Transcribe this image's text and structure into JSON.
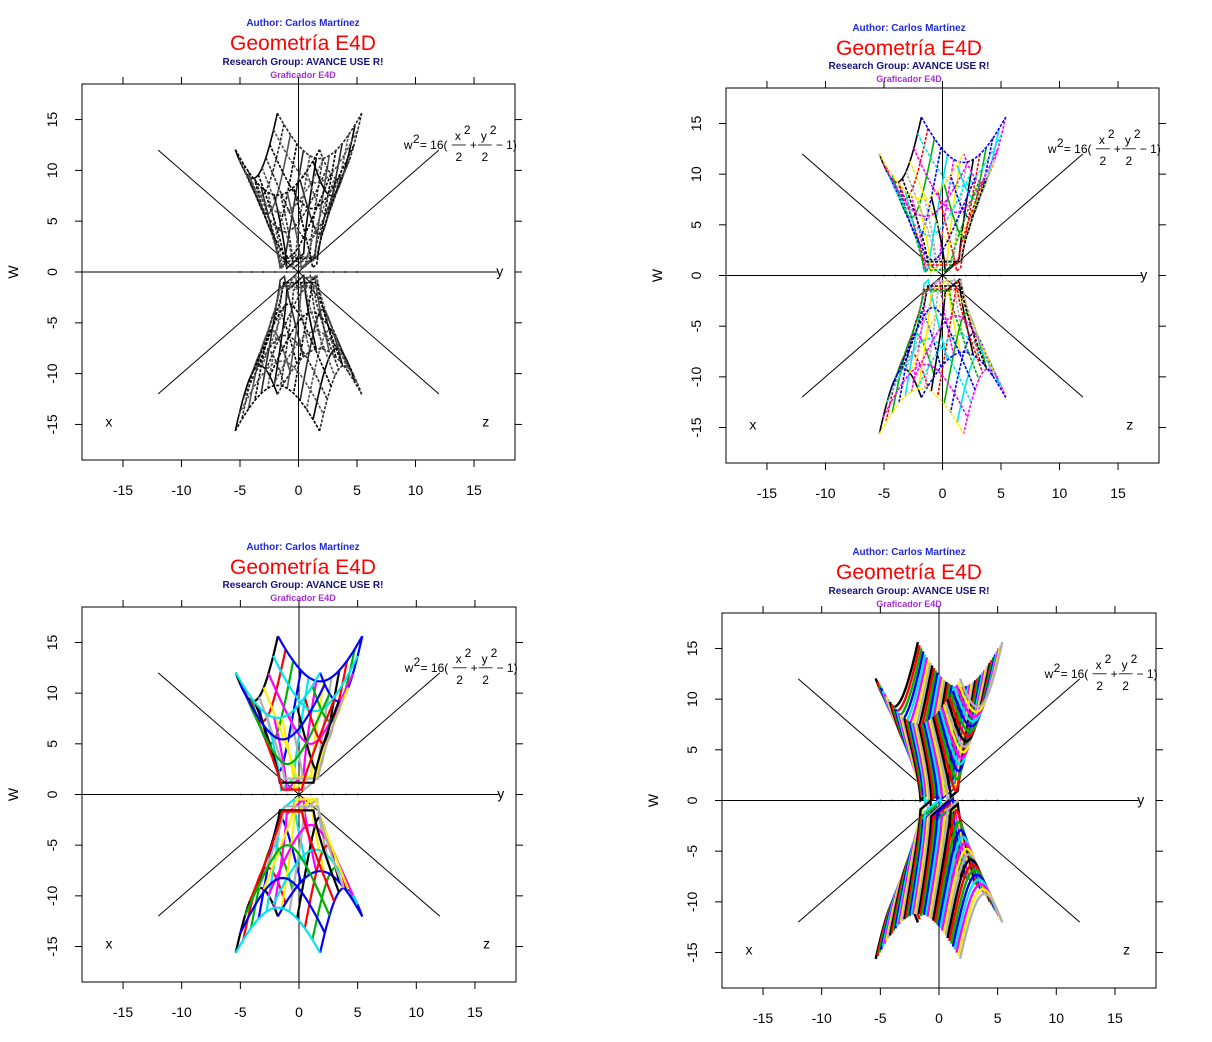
{
  "figure": {
    "author": "Author: Carlos Martínez",
    "title": "Geometría E4D",
    "research_group": "Research Group: AVANCE USE R!",
    "subtitle": "Graficador E4D",
    "ylabel": "W",
    "axis_labels": {
      "x": "x",
      "y": "y",
      "z": "z"
    },
    "formula": {
      "lhs": "w",
      "lhs_exp": "2",
      "eq": "= 16(",
      "t1_num": "x",
      "t1_exp": "2",
      "t1_den": "2",
      "plus": "+",
      "t2_num": "y",
      "t2_exp": "2",
      "t2_den": "2",
      "tail": "− 1)"
    }
  },
  "chart_data": [
    {
      "type": "line",
      "panel": "top-left",
      "coloring": "gray mesh",
      "palette": [
        "#000000",
        "#2b2b2b",
        "#555555"
      ],
      "xlim": [
        -18.5,
        18.5
      ],
      "ylim": [
        -18.5,
        18.5
      ],
      "xticks": [
        "-15",
        "-10",
        "-5",
        "0",
        "5",
        "10",
        "15"
      ],
      "yticks": [
        "15",
        "10",
        "5",
        "0",
        "-5",
        "-10",
        "-15"
      ],
      "surface": "w^2 = 16(x^2/2 + y^2/2 - 1)",
      "u_curves": 14,
      "v_curves": 12
    },
    {
      "type": "line",
      "panel": "top-right",
      "coloring": "colored mesh",
      "palette": [
        "#000000",
        "#ff0000",
        "#00b000",
        "#0000ff",
        "#00e5ee",
        "#ff00ff",
        "#ffee00",
        "#b0b0b0"
      ],
      "xlim": [
        -18.5,
        18.5
      ],
      "ylim": [
        -18.5,
        18.5
      ],
      "xticks": [
        "-15",
        "-10",
        "-5",
        "0",
        "5",
        "10",
        "15"
      ],
      "yticks": [
        "15",
        "10",
        "5",
        "0",
        "-5",
        "-10",
        "-15"
      ],
      "surface": "w^2 = 16(x^2/2 + y^2/2 - 1)",
      "u_curves": 14,
      "v_curves": 12
    },
    {
      "type": "line",
      "panel": "bottom-left",
      "coloring": "colored curves",
      "palette": [
        "#000000",
        "#ff0000",
        "#00b000",
        "#0000ff",
        "#00e5ee",
        "#ff00ff",
        "#ffee00",
        "#b0b0b0"
      ],
      "xlim": [
        -18.5,
        18.5
      ],
      "ylim": [
        -18.5,
        18.5
      ],
      "xticks": [
        "-15",
        "-10",
        "-5",
        "0",
        "5",
        "10",
        "15"
      ],
      "yticks": [
        "15",
        "10",
        "5",
        "0",
        "-5",
        "-10",
        "-15"
      ],
      "surface": "w^2 = 16(x^2/2 + y^2/2 - 1)",
      "u_curves": 12,
      "v_curves": 10
    },
    {
      "type": "line",
      "panel": "bottom-right",
      "coloring": "dense colored curves",
      "palette": [
        "#000000",
        "#ff0000",
        "#00b000",
        "#0000ff",
        "#00e5ee",
        "#ff00ff",
        "#ffee00",
        "#b0b0b0"
      ],
      "xlim": [
        -18.5,
        18.5
      ],
      "ylim": [
        -18.5,
        18.5
      ],
      "xticks": [
        "-15",
        "-10",
        "-5",
        "0",
        "5",
        "10",
        "15"
      ],
      "yticks": [
        "15",
        "10",
        "5",
        "0",
        "-5",
        "-10",
        "-15"
      ],
      "surface": "w^2 = 16(x^2/2 + y^2/2 - 1)",
      "u_curves": 48,
      "v_curves": 0
    }
  ]
}
